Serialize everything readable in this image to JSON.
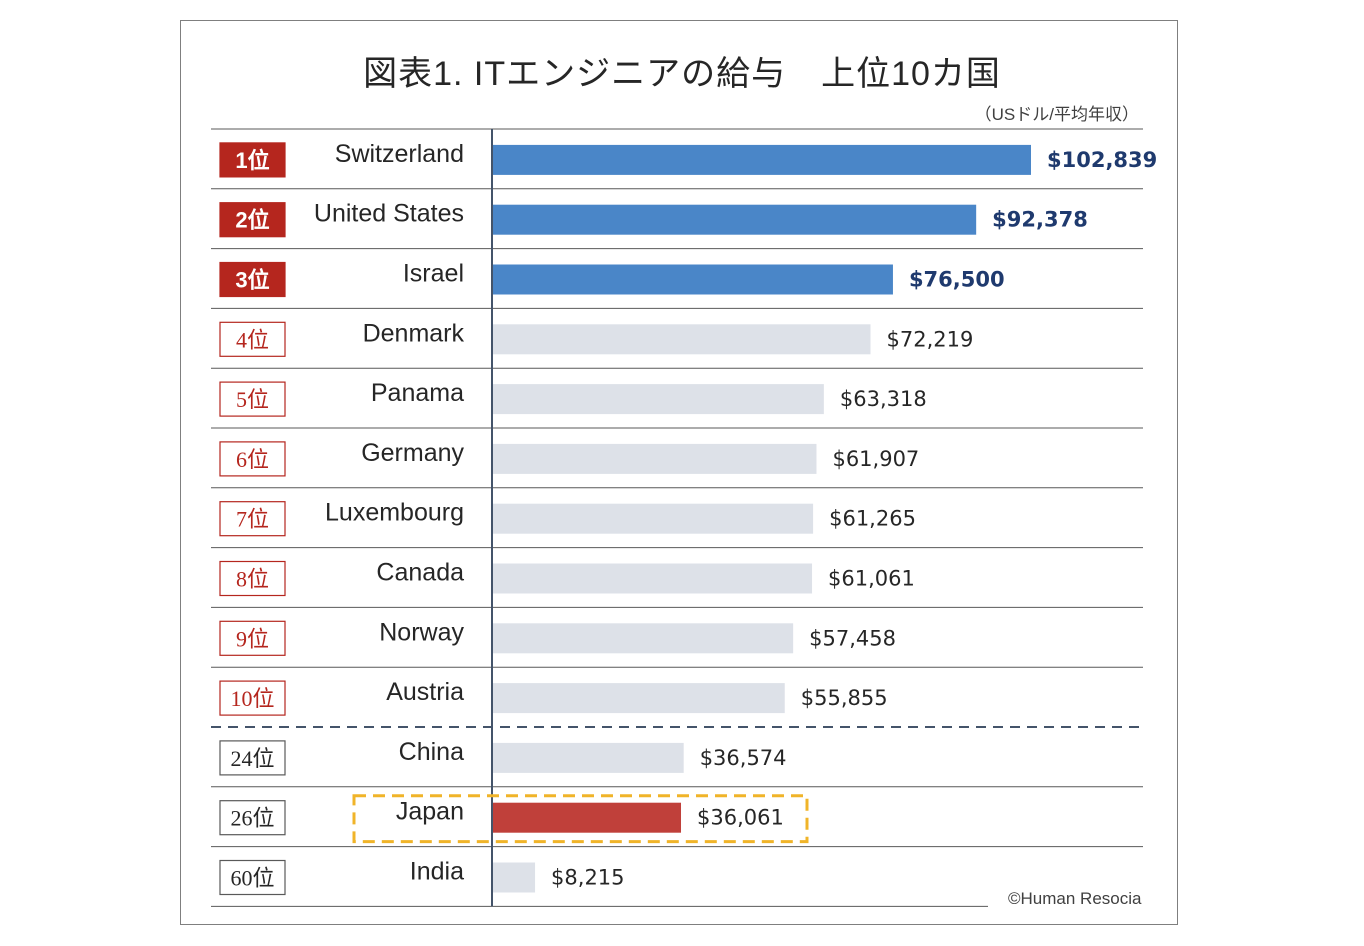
{
  "title": "図表1. ITエンジニアの給与　上位10カ国",
  "unit_note": "（USドル/平均年収）",
  "copyright": "©Human Resocia",
  "colors": {
    "top3_bar": "#4a86c8",
    "other_bar": "#dde1e8",
    "japan_bar": "#c0403a",
    "rank_red": "#b5261e",
    "top3_value_text": "#1f3a6e",
    "highlight_border": "#f0b429",
    "divider_dashed": "#44546a"
  },
  "chart_data": {
    "type": "bar",
    "orientation": "horizontal",
    "xlim": [
      0,
      120000
    ],
    "categories": [
      "Switzerland",
      "United States",
      "Israel",
      "Denmark",
      "Panama",
      "Germany",
      "Luxembourg",
      "Canada",
      "Norway",
      "Austria",
      "China",
      "Japan",
      "India"
    ],
    "ranks": [
      "1位",
      "2位",
      "3位",
      "4位",
      "5位",
      "6位",
      "7位",
      "8位",
      "9位",
      "10位",
      "24位",
      "26位",
      "60位"
    ],
    "values": [
      102839,
      92378,
      76500,
      72219,
      63318,
      61907,
      61265,
      61061,
      57458,
      55855,
      36574,
      36061,
      8215
    ],
    "value_labels": [
      "$102,839",
      "$92,378",
      "$76,500",
      "$72,219",
      "$63,318",
      "$61,907",
      "$61,265",
      "$61,061",
      "$57,458",
      "$55,855",
      "$36,574",
      "$36,061",
      "$8,215"
    ],
    "highlighted": "Japan"
  }
}
